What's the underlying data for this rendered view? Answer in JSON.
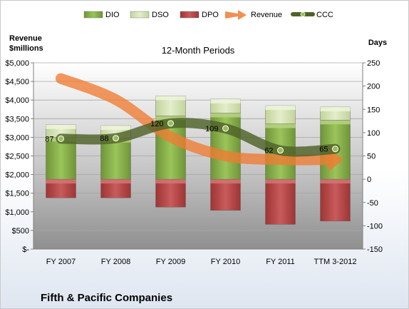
{
  "chart_data": {
    "type": "bar",
    "title": "12-Month Periods",
    "company": "Fifth & Pacific Companies",
    "categories": [
      "FY 2007",
      "FY 2008",
      "FY 2009",
      "FY 2010",
      "FY 2011",
      "TTM 3-2012"
    ],
    "left_axis": {
      "label_line1": "Revenue",
      "label_line2": "$millions",
      "range": [
        0,
        5000
      ],
      "ticks": [
        0,
        500,
        1000,
        1500,
        2000,
        2500,
        3000,
        3500,
        4000,
        4500,
        5000
      ],
      "tick_labels": [
        "$-",
        "$500",
        "$1,000",
        "$1,500",
        "$2,000",
        "$2,500",
        "$3,000",
        "$3,500",
        "$4,000",
        "$4,500",
        "$5,000"
      ]
    },
    "right_axis": {
      "label": "Days",
      "range": [
        -150,
        250
      ],
      "ticks": [
        -150,
        -100,
        -50,
        0,
        50,
        100,
        150,
        200,
        250
      ]
    },
    "series": [
      {
        "name": "DIO",
        "type": "bar",
        "axis": "right",
        "color": "#8db44a",
        "values": [
          90,
          88,
          136,
          142,
          119,
          127
        ]
      },
      {
        "name": "DSO",
        "type": "bar",
        "axis": "right",
        "color": "#d7e4b5",
        "values": [
          27,
          27,
          43,
          30,
          39,
          28
        ]
      },
      {
        "name": "DPO",
        "type": "bar",
        "axis": "right",
        "color": "#b94a4a",
        "values": [
          -40,
          -40,
          -60,
          -67,
          -97,
          -90
        ]
      },
      {
        "name": "Revenue",
        "type": "line",
        "axis": "left",
        "color": "#f07b32",
        "values": [
          4577,
          4012,
          3012,
          2500,
          2400,
          2400
        ]
      },
      {
        "name": "CCC",
        "type": "line",
        "axis": "right",
        "color": "#4f6228",
        "values": [
          87,
          88,
          120,
          109,
          62,
          65
        ]
      }
    ],
    "ccc_labels": [
      "87",
      "88",
      "120",
      "109",
      "62",
      "65"
    ],
    "plot_area": "gray gradient",
    "legend": "top"
  }
}
